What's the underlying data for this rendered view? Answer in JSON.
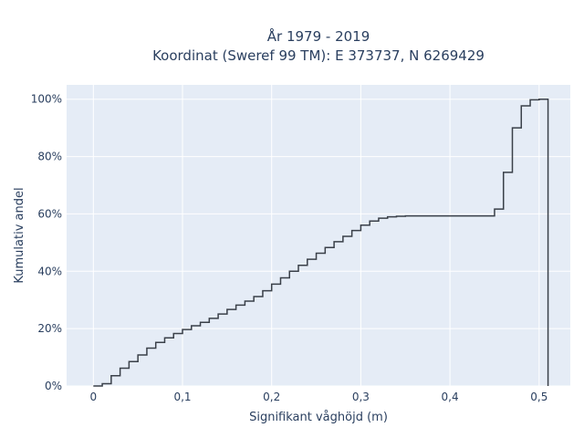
{
  "chart_data": {
    "type": "line",
    "title_line1": "År 1979 - 2019",
    "title_line2": "Koordinat (Sweref 99 TM): E 373737, N 6269429",
    "xlabel": "Signifikant våghöjd (m)",
    "ylabel": "Kumulativ andel",
    "xlim": [
      -0.03,
      0.535
    ],
    "ylim": [
      0,
      1.05
    ],
    "x_ticks": [
      {
        "value": 0,
        "label": "0"
      },
      {
        "value": 0.1,
        "label": "0,1"
      },
      {
        "value": 0.2,
        "label": "0,2"
      },
      {
        "value": 0.3,
        "label": "0,3"
      },
      {
        "value": 0.4,
        "label": "0,4"
      },
      {
        "value": 0.5,
        "label": "0,5"
      }
    ],
    "y_ticks": [
      {
        "value": 0,
        "label": "0%"
      },
      {
        "value": 0.2,
        "label": "20%"
      },
      {
        "value": 0.4,
        "label": "40%"
      },
      {
        "value": 0.6,
        "label": "60%"
      },
      {
        "value": 0.8,
        "label": "80%"
      },
      {
        "value": 1.0,
        "label": "100%"
      }
    ],
    "grid": true,
    "line_color": "#3a4049",
    "plot_bg": "#e5ecf6",
    "series": [
      {
        "shape": "step",
        "x": [
          0,
          0.01,
          0.02,
          0.03,
          0.04,
          0.05,
          0.06,
          0.07,
          0.08,
          0.09,
          0.1,
          0.11,
          0.12,
          0.13,
          0.14,
          0.15,
          0.16,
          0.17,
          0.18,
          0.19,
          0.2,
          0.21,
          0.22,
          0.23,
          0.24,
          0.25,
          0.26,
          0.27,
          0.28,
          0.29,
          0.3,
          0.31,
          0.32,
          0.33,
          0.34,
          0.35,
          0.44,
          0.45,
          0.46,
          0.47,
          0.48,
          0.49,
          0.5,
          0.51
        ],
        "y": [
          0,
          0.008,
          0.036,
          0.062,
          0.085,
          0.108,
          0.132,
          0.152,
          0.168,
          0.183,
          0.197,
          0.21,
          0.222,
          0.236,
          0.251,
          0.267,
          0.282,
          0.296,
          0.312,
          0.332,
          0.355,
          0.377,
          0.4,
          0.421,
          0.442,
          0.463,
          0.483,
          0.503,
          0.522,
          0.542,
          0.561,
          0.575,
          0.585,
          0.59,
          0.592,
          0.593,
          0.593,
          0.617,
          0.745,
          0.9,
          0.977,
          0.998,
          1.0,
          0.0
        ]
      }
    ]
  }
}
